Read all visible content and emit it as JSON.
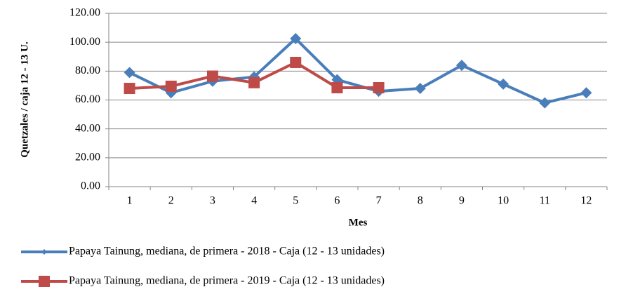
{
  "chart_data": {
    "type": "line",
    "y_label": "Quetzales / caja 12 - 13 U.",
    "x_label": "Mes",
    "categories": [
      "1",
      "2",
      "3",
      "4",
      "5",
      "6",
      "7",
      "8",
      "9",
      "10",
      "11",
      "12"
    ],
    "series": [
      {
        "name": "Papaya Tainung, mediana, de primera - 2018 - Caja (12 - 13 unidades)",
        "color": "#4a7ebb",
        "marker": "diamond",
        "values": [
          79,
          65,
          73,
          76,
          102.5,
          74,
          66,
          68,
          84,
          71,
          58,
          65
        ]
      },
      {
        "name": "Papaya Tainung, mediana, de primera - 2019 - Caja (12 - 13 unidades)",
        "color": "#be4b48",
        "marker": "square",
        "values": [
          68,
          69.5,
          76.5,
          72,
          86,
          68.5,
          68.5,
          null,
          null,
          null,
          null,
          null
        ]
      }
    ],
    "ylim": [
      0,
      120
    ],
    "yticks": [
      {
        "value": 0,
        "label": "0.00"
      },
      {
        "value": 20,
        "label": "20.00"
      },
      {
        "value": 40,
        "label": "40.00"
      },
      {
        "value": 60,
        "label": "60.00"
      },
      {
        "value": 80,
        "label": "80.00"
      },
      {
        "value": 100,
        "label": "100.00"
      },
      {
        "value": 120,
        "label": "120.00"
      }
    ],
    "grid": true
  }
}
